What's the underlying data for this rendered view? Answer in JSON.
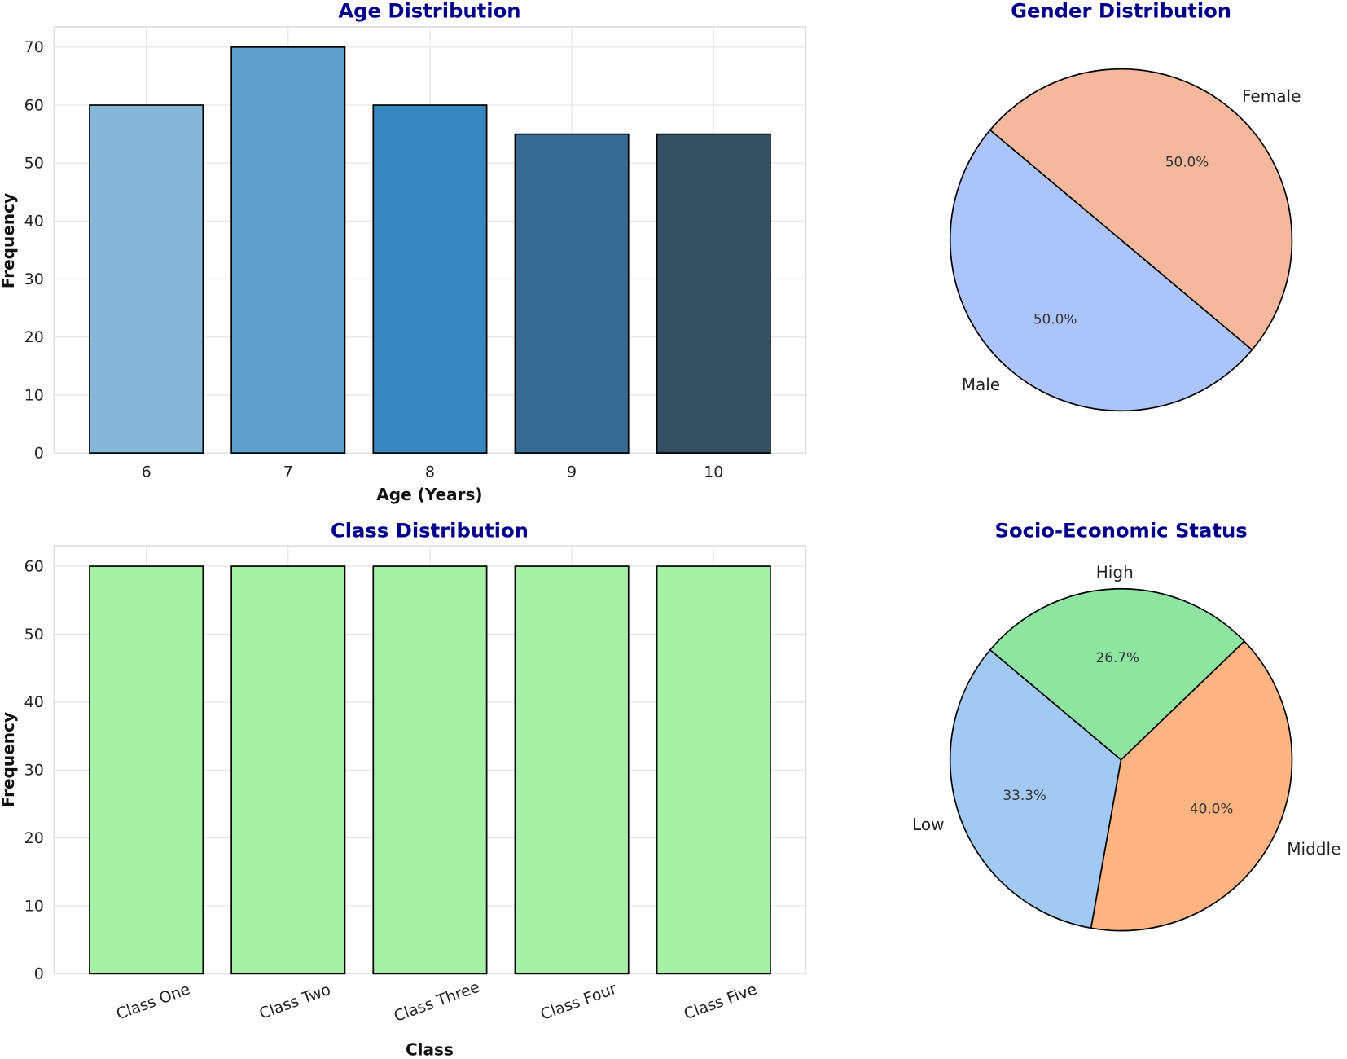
{
  "chart_data": [
    {
      "type": "bar",
      "title": "Age Distribution",
      "xlabel": "Age (Years)",
      "ylabel": "Frequency",
      "categories": [
        "6",
        "7",
        "8",
        "9",
        "10"
      ],
      "values": [
        60,
        70,
        60,
        55,
        55
      ],
      "colors": [
        "#86b6d8",
        "#5f9fcc",
        "#3787c0",
        "#366c93",
        "#344e62"
      ],
      "ylim": [
        0,
        73.5
      ],
      "yticks": [
        0,
        10,
        20,
        30,
        40,
        50,
        60,
        70
      ],
      "grid": true
    },
    {
      "type": "pie",
      "title": "Gender Distribution",
      "labels": [
        "Male",
        "Female"
      ],
      "values": [
        50.0,
        50.0
      ],
      "pct_labels": [
        "50.0%",
        "50.0%"
      ],
      "colors": [
        "#abc4fc",
        "#f6b89c"
      ],
      "startangle": 140
    },
    {
      "type": "bar",
      "title": "Class Distribution",
      "xlabel": "Class",
      "ylabel": "Frequency",
      "categories": [
        "Class One",
        "Class Two",
        "Class Three",
        "Class Four",
        "Class Five"
      ],
      "values": [
        60,
        60,
        60,
        60,
        60
      ],
      "colors": [
        "#a6f0a6",
        "#a6f0a6",
        "#a6f0a6",
        "#a6f0a6",
        "#a6f0a6"
      ],
      "ylim": [
        0,
        63
      ],
      "yticks": [
        0,
        10,
        20,
        30,
        40,
        50,
        60
      ],
      "grid": true
    },
    {
      "type": "pie",
      "title": "Socio-Economic Status",
      "labels": [
        "Low",
        "Middle",
        "High"
      ],
      "values": [
        33.3,
        40.0,
        26.7
      ],
      "pct_labels": [
        "33.3%",
        "40.0%",
        "26.7%"
      ],
      "colors": [
        "#a1c9f4",
        "#ffb482",
        "#8de5a1"
      ],
      "startangle": 140
    }
  ]
}
